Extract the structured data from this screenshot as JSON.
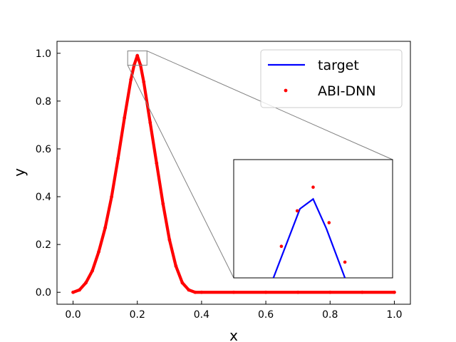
{
  "chart_data": {
    "type": "line",
    "title": "",
    "xlabel": "x",
    "ylabel": "y",
    "xlim": [
      -0.05,
      1.05
    ],
    "ylim": [
      -0.05,
      1.05
    ],
    "xticks": [
      0.0,
      0.2,
      0.4,
      0.6,
      0.8,
      1.0
    ],
    "yticks": [
      0.0,
      0.2,
      0.4,
      0.6,
      0.8,
      1.0
    ],
    "xtick_labels": [
      "0.0",
      "0.2",
      "0.4",
      "0.6",
      "0.8",
      "1.0"
    ],
    "ytick_labels": [
      "0.0",
      "0.2",
      "0.4",
      "0.6",
      "0.8",
      "1.0"
    ],
    "grid": false,
    "legend": {
      "placement": "top-right"
    },
    "series": [
      {
        "name": "target",
        "style": "line",
        "color": "#0000ff",
        "x": [
          0.0,
          0.02,
          0.04,
          0.06,
          0.08,
          0.1,
          0.12,
          0.14,
          0.16,
          0.18,
          0.19,
          0.2,
          0.21,
          0.22,
          0.24,
          0.26,
          0.28,
          0.3,
          0.32,
          0.34,
          0.36,
          0.38,
          0.4,
          0.5,
          0.6,
          0.7,
          0.8,
          0.9,
          1.0
        ],
        "y": [
          0.0,
          0.01,
          0.04,
          0.09,
          0.17,
          0.27,
          0.4,
          0.56,
          0.73,
          0.89,
          0.95,
          0.99,
          0.95,
          0.88,
          0.71,
          0.54,
          0.37,
          0.22,
          0.11,
          0.04,
          0.01,
          0.0,
          0.0,
          0.0,
          0.0,
          0.0,
          0.0,
          0.0,
          0.0
        ]
      },
      {
        "name": "ABI-DNN",
        "style": "scatter",
        "color": "#ff0000",
        "x": [
          0.0,
          0.02,
          0.04,
          0.06,
          0.08,
          0.1,
          0.12,
          0.14,
          0.16,
          0.18,
          0.19,
          0.2,
          0.21,
          0.22,
          0.24,
          0.26,
          0.28,
          0.3,
          0.32,
          0.34,
          0.36,
          0.38,
          0.4,
          0.5,
          0.6,
          0.7,
          0.8,
          0.9,
          1.0
        ],
        "y": [
          0.0,
          0.01,
          0.04,
          0.09,
          0.17,
          0.27,
          0.4,
          0.56,
          0.73,
          0.89,
          0.95,
          0.99,
          0.95,
          0.88,
          0.71,
          0.54,
          0.37,
          0.22,
          0.11,
          0.04,
          0.01,
          0.0,
          0.0,
          0.0,
          0.0,
          0.0,
          0.0,
          0.0,
          0.0
        ]
      }
    ],
    "inset": {
      "xlim": [
        0.17,
        0.23
      ],
      "ylim": [
        0.95,
        1.01
      ],
      "target_x": [
        0.185,
        0.195,
        0.2,
        0.205,
        0.212
      ],
      "target_y": [
        0.95,
        0.985,
        0.99,
        0.975,
        0.95
      ],
      "points_x": [
        0.188,
        0.194,
        0.2,
        0.206,
        0.212
      ],
      "points_y": [
        0.966,
        0.984,
        0.996,
        0.978,
        0.958
      ]
    }
  }
}
